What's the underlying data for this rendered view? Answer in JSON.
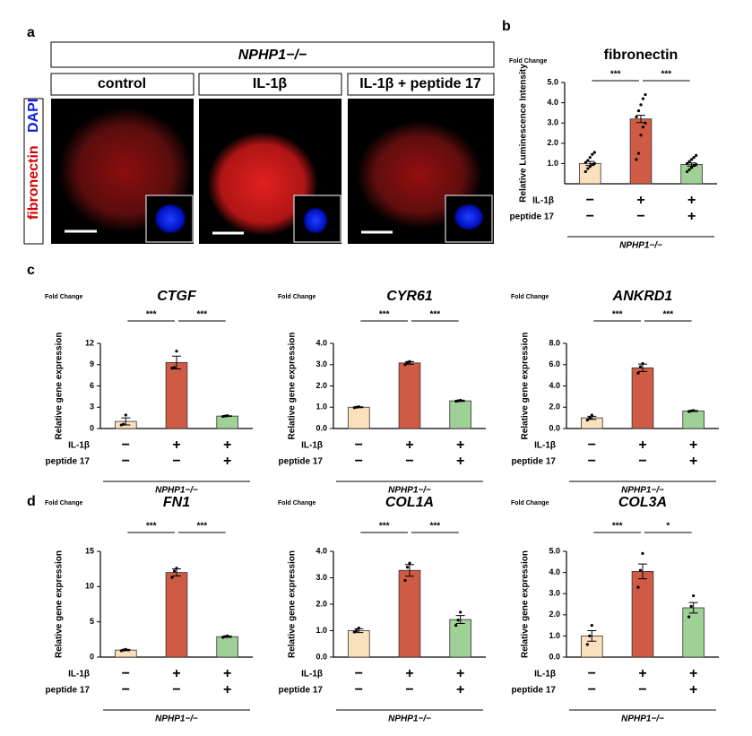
{
  "panel_labels": [
    "a",
    "b",
    "c",
    "d"
  ],
  "figure_a": {
    "genotype": "NPHP1−/−",
    "conditions": [
      "control",
      "IL-1β",
      "IL-1β + peptide 17"
    ],
    "stain_label": [
      "fibronectin",
      "DAPI"
    ]
  },
  "chart_data": [
    {
      "type": "bar",
      "title": "fibronectin",
      "title_style": "normal",
      "y_unit": "Fold Change",
      "ylabel": "Relative Luminescence Intensity",
      "ylim": [
        0,
        5
      ],
      "yticks": [
        {
          "value": 1,
          "label": "1.0"
        },
        {
          "value": 2,
          "label": "2.0"
        },
        {
          "value": 3,
          "label": "3.0"
        },
        {
          "value": 4,
          "label": "4.0"
        },
        {
          "value": 5,
          "label": "5.0"
        }
      ],
      "colors": [
        "#fbe0bd",
        "#cf5b45",
        "#9fd196"
      ],
      "values": [
        1.0,
        3.2,
        0.95
      ],
      "errors": [
        0.1,
        0.18,
        0.08
      ],
      "points": [
        [
          0.6,
          0.75,
          0.85,
          0.95,
          1.0,
          1.05,
          1.15,
          1.3,
          1.45,
          1.55
        ],
        [
          1.2,
          1.5,
          2.4,
          2.8,
          3.0,
          3.3,
          3.6,
          3.9,
          4.2,
          4.4
        ],
        [
          0.6,
          0.7,
          0.8,
          0.9,
          0.95,
          1.0,
          1.1,
          1.2,
          1.3,
          1.4
        ]
      ],
      "significance": [
        "***",
        "***"
      ],
      "treatment_rows": [
        {
          "name": "IL-1β",
          "marks": [
            "−",
            "+",
            "+"
          ]
        },
        {
          "name": "peptide 17",
          "marks": [
            "−",
            "−",
            "+"
          ]
        }
      ],
      "group_label": "NPHP1−/−"
    },
    {
      "type": "bar",
      "title": "CTGF",
      "title_style": "italic",
      "y_unit": "Fold Change",
      "ylabel": "Relative gene expression",
      "ylim": [
        0,
        12
      ],
      "yticks": [
        0,
        3,
        6,
        9,
        12
      ],
      "colors": [
        "#fbe0bd",
        "#cf5b45",
        "#9fd196"
      ],
      "values": [
        1.0,
        9.3,
        1.75
      ],
      "errors": [
        0.5,
        0.9,
        0.05
      ],
      "points": [
        [
          0.5,
          0.6,
          1.9
        ],
        [
          8.5,
          8.6,
          10.9
        ],
        [
          1.7,
          1.75,
          1.8
        ]
      ],
      "significance": [
        "***",
        "***"
      ],
      "treatment_rows": [
        {
          "name": "IL-1β",
          "marks": [
            "−",
            "+",
            "+"
          ]
        },
        {
          "name": "peptide 17",
          "marks": [
            "−",
            "−",
            "+"
          ]
        }
      ],
      "group_label": "NPHP1−/−"
    },
    {
      "type": "bar",
      "title": "CYR61",
      "title_style": "italic",
      "y_unit": "Fold Change",
      "ylabel": "Relative gene expression",
      "ylim": [
        0,
        4
      ],
      "yticks": [
        {
          "value": 0,
          "label": "0.0"
        },
        {
          "value": 1,
          "label": "1.0"
        },
        {
          "value": 2,
          "label": "2.0"
        },
        {
          "value": 3,
          "label": "3.0"
        },
        {
          "value": 4,
          "label": "4.0"
        }
      ],
      "colors": [
        "#fbe0bd",
        "#cf5b45",
        "#9fd196"
      ],
      "values": [
        1.0,
        3.08,
        1.3
      ],
      "errors": [
        0.02,
        0.06,
        0.03
      ],
      "points": [
        [
          0.98,
          1.0,
          1.02
        ],
        [
          3.0,
          3.1,
          3.15
        ],
        [
          1.28,
          1.3,
          1.33
        ]
      ],
      "significance": [
        "***",
        "***"
      ],
      "treatment_rows": [
        {
          "name": "IL-1β",
          "marks": [
            "−",
            "+",
            "+"
          ]
        },
        {
          "name": "peptide 17",
          "marks": [
            "−",
            "−",
            "+"
          ]
        }
      ],
      "group_label": "NPHP1−/−"
    },
    {
      "type": "bar",
      "title": "ANKRD1",
      "title_style": "italic",
      "y_unit": "Fold Change",
      "ylabel": "Relative gene expression",
      "ylim": [
        0,
        8
      ],
      "yticks": [
        {
          "value": 0,
          "label": "0.0"
        },
        {
          "value": 2,
          "label": "2.0"
        },
        {
          "value": 4,
          "label": "4.0"
        },
        {
          "value": 6,
          "label": "6.0"
        },
        {
          "value": 8,
          "label": "8.0"
        }
      ],
      "colors": [
        "#fbe0bd",
        "#cf5b45",
        "#9fd196"
      ],
      "values": [
        1.0,
        5.7,
        1.65
      ],
      "errors": [
        0.15,
        0.35,
        0.05
      ],
      "points": [
        [
          0.8,
          1.0,
          1.25
        ],
        [
          5.2,
          5.8,
          6.1
        ],
        [
          1.6,
          1.65,
          1.7
        ]
      ],
      "significance": [
        "***",
        "***"
      ],
      "treatment_rows": [
        {
          "name": "IL-1β",
          "marks": [
            "−",
            "+",
            "+"
          ]
        },
        {
          "name": "peptide 17",
          "marks": [
            "−",
            "−",
            "+"
          ]
        }
      ],
      "group_label": "NPHP1−/−"
    },
    {
      "type": "bar",
      "title": "FN1",
      "title_style": "italic",
      "y_unit": "Fold Change",
      "ylabel": "Relative gene expression",
      "ylim": [
        0,
        15
      ],
      "yticks": [
        0,
        5,
        10,
        15
      ],
      "colors": [
        "#fbe0bd",
        "#cf5b45",
        "#9fd196"
      ],
      "values": [
        1.0,
        12.0,
        2.9
      ],
      "errors": [
        0.1,
        0.5,
        0.1
      ],
      "points": [
        [
          0.9,
          1.0,
          1.1
        ],
        [
          11.3,
          12.2,
          12.6
        ],
        [
          2.8,
          2.9,
          3.0
        ]
      ],
      "significance": [
        "***",
        "***"
      ],
      "treatment_rows": [
        {
          "name": "IL-1β",
          "marks": [
            "−",
            "+",
            "+"
          ]
        },
        {
          "name": "peptide 17",
          "marks": [
            "−",
            "−",
            "+"
          ]
        }
      ],
      "group_label": "NPHP1−/−"
    },
    {
      "type": "bar",
      "title": "COL1A",
      "title_style": "italic",
      "y_unit": "Fold Change",
      "ylabel": "Relative gene expression",
      "ylim": [
        0,
        4
      ],
      "yticks": [
        {
          "value": 0,
          "label": "0.0"
        },
        {
          "value": 1,
          "label": "1.0"
        },
        {
          "value": 2,
          "label": "2.0"
        },
        {
          "value": 3,
          "label": "3.0"
        },
        {
          "value": 4,
          "label": "4.0"
        }
      ],
      "colors": [
        "#fbe0bd",
        "#cf5b45",
        "#9fd196"
      ],
      "values": [
        1.0,
        3.28,
        1.42
      ],
      "errors": [
        0.07,
        0.22,
        0.15
      ],
      "points": [
        [
          0.95,
          1.0,
          1.1
        ],
        [
          2.9,
          3.4,
          3.55
        ],
        [
          1.2,
          1.4,
          1.7
        ]
      ],
      "significance": [
        "***",
        "***"
      ],
      "treatment_rows": [
        {
          "name": "IL-1β",
          "marks": [
            "−",
            "+",
            "+"
          ]
        },
        {
          "name": "peptide 17",
          "marks": [
            "−",
            "−",
            "+"
          ]
        }
      ],
      "group_label": "NPHP1−/−"
    },
    {
      "type": "bar",
      "title": "COL3A",
      "title_style": "italic",
      "y_unit": "Fold Change",
      "ylabel": "Relative gene expression",
      "ylim": [
        0,
        5
      ],
      "yticks": [
        {
          "value": 0,
          "label": "0.0"
        },
        {
          "value": 1,
          "label": "1.0"
        },
        {
          "value": 2,
          "label": "2.0"
        },
        {
          "value": 3,
          "label": "3.0"
        },
        {
          "value": 4,
          "label": "4.0"
        },
        {
          "value": 5,
          "label": "5.0"
        }
      ],
      "colors": [
        "#fbe0bd",
        "#cf5b45",
        "#9fd196"
      ],
      "values": [
        1.0,
        4.05,
        2.33
      ],
      "errors": [
        0.25,
        0.35,
        0.25
      ],
      "points": [
        [
          0.6,
          1.0,
          1.5
        ],
        [
          3.3,
          4.1,
          4.9
        ],
        [
          1.9,
          2.4,
          2.9
        ]
      ],
      "significance": [
        "***",
        "*"
      ],
      "treatment_rows": [
        {
          "name": "IL-1β",
          "marks": [
            "−",
            "+",
            "+"
          ]
        },
        {
          "name": "peptide 17",
          "marks": [
            "−",
            "−",
            "+"
          ]
        }
      ],
      "group_label": "NPHP1−/−"
    }
  ]
}
